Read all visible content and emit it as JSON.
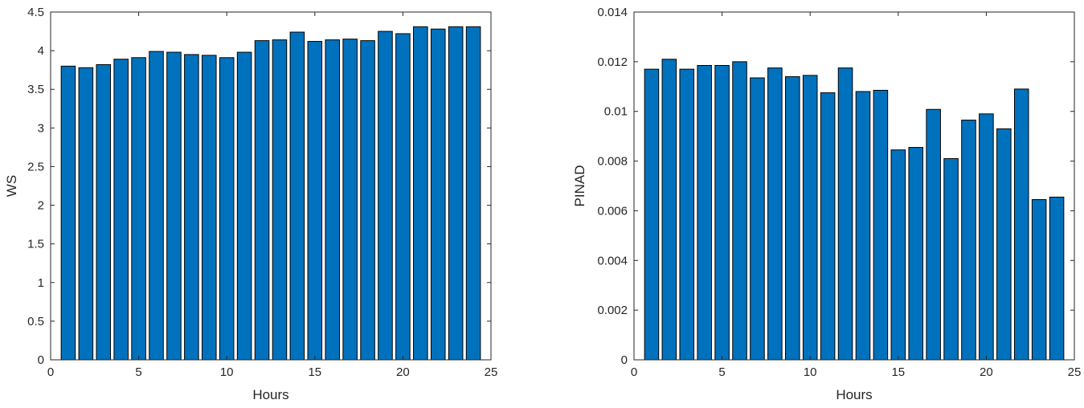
{
  "chart_data": [
    {
      "type": "bar",
      "title": "",
      "xlabel": "Hours",
      "ylabel": "WS",
      "x": [
        1,
        2,
        3,
        4,
        5,
        6,
        7,
        8,
        9,
        10,
        11,
        12,
        13,
        14,
        15,
        16,
        17,
        18,
        19,
        20,
        21,
        22,
        23,
        24
      ],
      "values": [
        3.8,
        3.78,
        3.82,
        3.89,
        3.91,
        3.99,
        3.98,
        3.95,
        3.94,
        3.91,
        3.98,
        4.13,
        4.14,
        4.24,
        4.12,
        4.14,
        4.15,
        4.13,
        4.25,
        4.22,
        4.31,
        4.28,
        4.31,
        4.31
      ],
      "xlim": [
        0,
        25
      ],
      "ylim": [
        0,
        4.5
      ],
      "xticks": [
        0,
        5,
        10,
        15,
        20,
        25
      ],
      "xtick_labels": [
        "0",
        "5",
        "10",
        "15",
        "20",
        "25"
      ],
      "yticks": [
        0,
        0.5,
        1,
        1.5,
        2,
        2.5,
        3,
        3.5,
        4,
        4.5
      ],
      "ytick_labels": [
        "0",
        "0.5",
        "1",
        "1.5",
        "2",
        "2.5",
        "3",
        "3.5",
        "4",
        "4.5"
      ],
      "bar_color": "#0072BD",
      "grid": false
    },
    {
      "type": "bar",
      "title": "",
      "xlabel": "Hours",
      "ylabel": "PINAD",
      "x": [
        1,
        2,
        3,
        4,
        5,
        6,
        7,
        8,
        9,
        10,
        11,
        12,
        13,
        14,
        15,
        16,
        17,
        18,
        19,
        20,
        21,
        22,
        23,
        24
      ],
      "values": [
        0.0117,
        0.0121,
        0.0117,
        0.01185,
        0.01185,
        0.012,
        0.01135,
        0.01175,
        0.0114,
        0.01145,
        0.01075,
        0.01175,
        0.0108,
        0.01085,
        0.00845,
        0.00855,
        0.01008,
        0.0081,
        0.00965,
        0.0099,
        0.0093,
        0.0109,
        0.00645,
        0.00655
      ],
      "xlim": [
        0,
        25
      ],
      "ylim": [
        0,
        0.014
      ],
      "xticks": [
        0,
        5,
        10,
        15,
        20,
        25
      ],
      "xtick_labels": [
        "0",
        "5",
        "10",
        "15",
        "20",
        "25"
      ],
      "yticks": [
        0,
        0.002,
        0.004,
        0.006,
        0.008,
        0.01,
        0.012,
        0.014
      ],
      "ytick_labels": [
        "0",
        "0.002",
        "0.004",
        "0.006",
        "0.008",
        "0.01",
        "0.012",
        "0.014"
      ],
      "bar_color": "#0072BD",
      "grid": false
    }
  ]
}
